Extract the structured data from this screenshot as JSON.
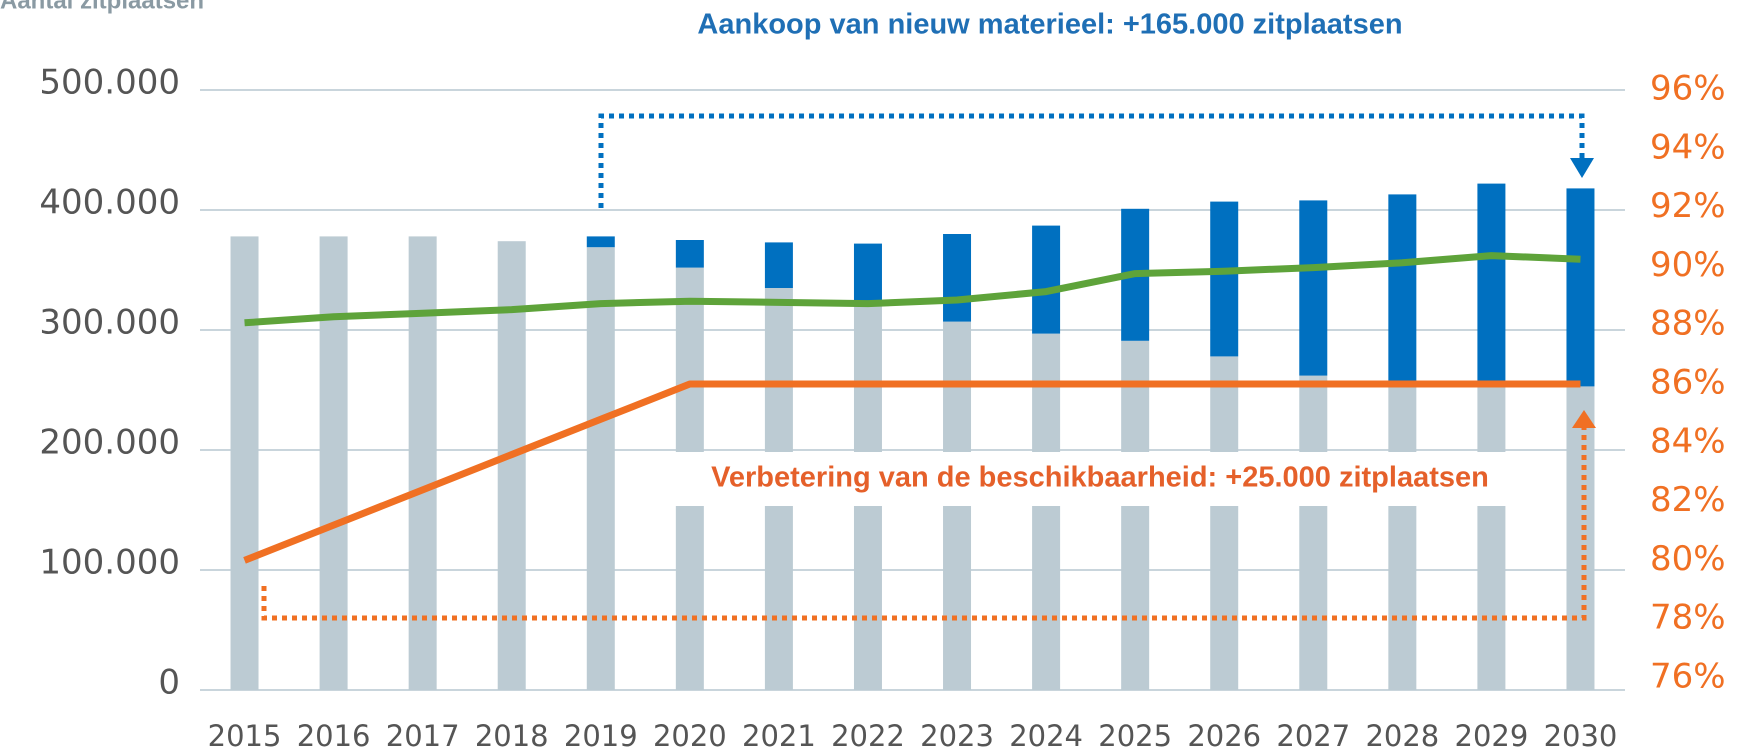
{
  "chart_data": {
    "type": "bar",
    "title": "Aantal zitplaatsen",
    "annotations": [
      "Aankoop van nieuw materieel: +165.000 zitplaatsen",
      "Verbetering van de beschikbaarheid: +25.000 zitplaatsen"
    ],
    "categories": [
      "2015",
      "2016",
      "2017",
      "2018",
      "2019",
      "2020",
      "2021",
      "2022",
      "2023",
      "2024",
      "2025",
      "2026",
      "2027",
      "2028",
      "2029",
      "2030"
    ],
    "series": [
      {
        "color": "#bccbd3",
        "stack": true,
        "values": [
          378000,
          378000,
          378000,
          374000,
          369000,
          352000,
          335000,
          320000,
          307000,
          297000,
          291000,
          278000,
          262000,
          257000,
          257000,
          253000
        ]
      },
      {
        "color": "#0070c0",
        "stack": true,
        "values": [
          0,
          0,
          0,
          0,
          9000,
          23000,
          38000,
          52000,
          73000,
          90000,
          110000,
          129000,
          146000,
          156000,
          165000,
          165000
        ]
      },
      {
        "color": "#5ea33a",
        "type": "line",
        "values": [
          306000,
          311000,
          314000,
          317000,
          322000,
          324000,
          323000,
          322000,
          325000,
          332000,
          347000,
          349000,
          352000,
          356000,
          362000,
          359000
        ]
      },
      {
        "color": "#f07023",
        "type": "line",
        "axis": "y2",
        "values": [
          80,
          81.2,
          82.4,
          83.6,
          84.8,
          86,
          86,
          86,
          86,
          86,
          86,
          86,
          86,
          86,
          86,
          86
        ]
      }
    ],
    "ylim": [
      0,
      500000
    ],
    "yticks": [
      0,
      {
        "value": 100000,
        "label": "100.000"
      },
      {
        "value": 200000,
        "label": "200.000"
      },
      {
        "value": 300000,
        "label": "300.000"
      },
      {
        "value": 400000,
        "label": "400.000"
      },
      {
        "value": 500000,
        "label": "500.000"
      }
    ],
    "y2lim": [
      76,
      96
    ],
    "y2ticks": [
      {
        "value": 76,
        "label": "76%"
      },
      {
        "value": 78,
        "label": "78%"
      },
      {
        "value": 80,
        "label": "80%"
      },
      {
        "value": 82,
        "label": "82%"
      },
      {
        "value": 84,
        "label": "84%"
      },
      {
        "value": 86,
        "label": "86%"
      },
      {
        "value": 88,
        "label": "88%"
      },
      {
        "value": 90,
        "label": "90%"
      },
      {
        "value": 92,
        "label": "92%"
      },
      {
        "value": 94,
        "label": "94%"
      },
      {
        "value": 96,
        "label": "96%"
      }
    ],
    "grid": true
  }
}
